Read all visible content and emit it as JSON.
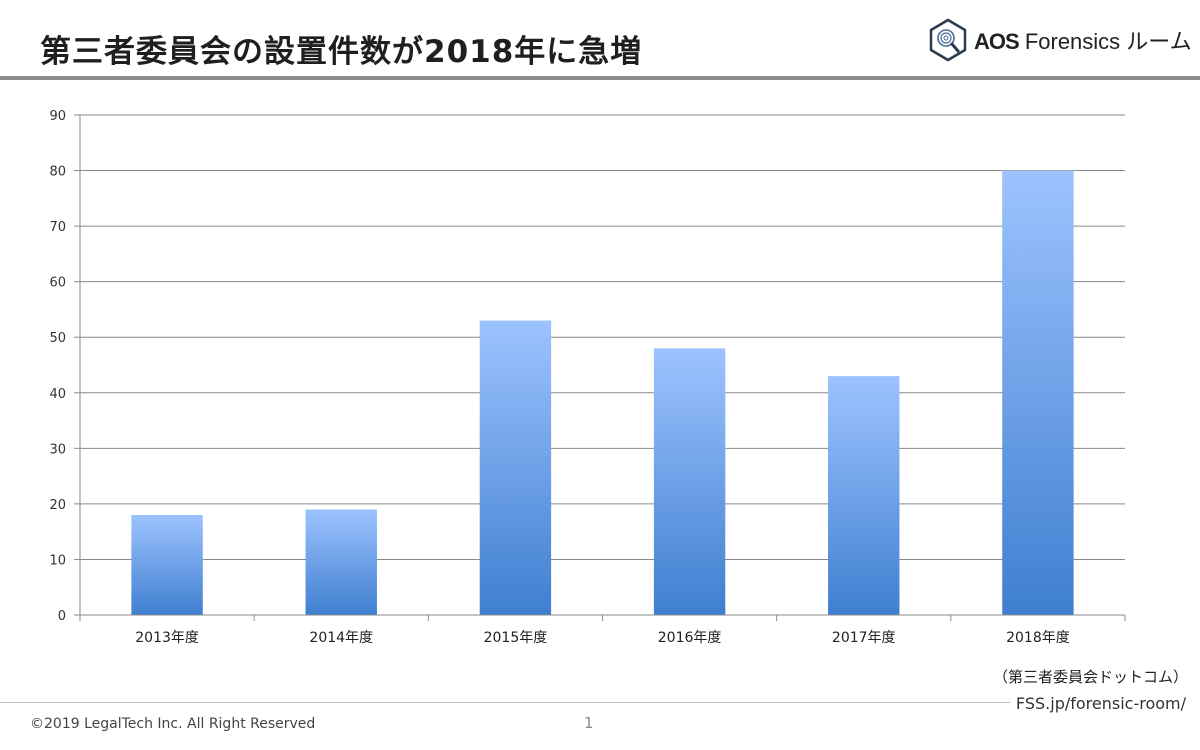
{
  "header": {
    "title": "第三者委員会の設置件数が2018年に急増",
    "logo": {
      "brand": "AOS",
      "product": "Forensics ルーム"
    }
  },
  "chart_data": {
    "type": "bar",
    "categories": [
      "2013年度",
      "2014年度",
      "2015年度",
      "2016年度",
      "2017年度",
      "2018年度"
    ],
    "values": [
      18,
      19,
      53,
      48,
      43,
      80
    ],
    "ylim": [
      0,
      90
    ],
    "yticks": [
      0,
      10,
      20,
      30,
      40,
      50,
      60,
      70,
      80,
      90
    ],
    "grid": true,
    "bar_color_top": "#9dc3ff",
    "bar_color_bottom": "#3f7fd0"
  },
  "source": "（第三者委員会ドットコム）",
  "footer": {
    "copyright": "©2019 LegalTech Inc. All Right Reserved",
    "page_number": "1",
    "url": "FSS.jp/forensic-room/"
  }
}
